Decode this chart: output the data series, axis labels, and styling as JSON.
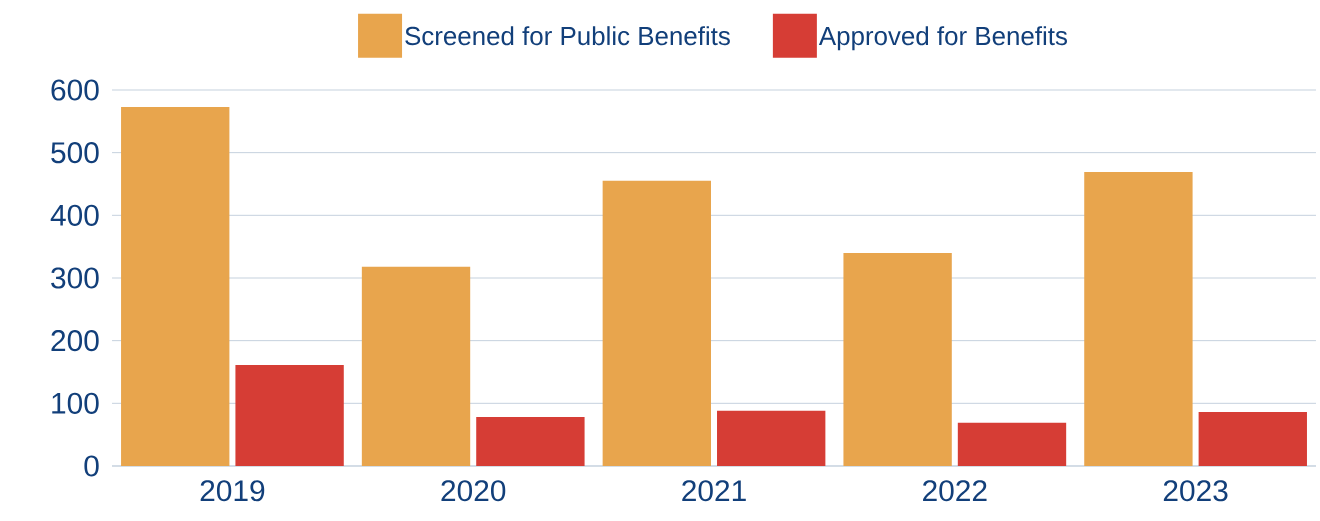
{
  "chart_data": {
    "type": "bar",
    "categories": [
      "2019",
      "2020",
      "2021",
      "2022",
      "2023"
    ],
    "series": [
      {
        "name": "Screened for Public Benefits",
        "color": "#e8a54d",
        "values": [
          573,
          318,
          455,
          340,
          469
        ]
      },
      {
        "name": "Approved for Benefits",
        "color": "#d63d35",
        "values": [
          161,
          78,
          88,
          69,
          86
        ]
      }
    ],
    "ylim": [
      0,
      600
    ],
    "yticks": [
      0,
      100,
      200,
      300,
      400,
      500,
      600
    ],
    "grid": "y",
    "legend": "top"
  }
}
